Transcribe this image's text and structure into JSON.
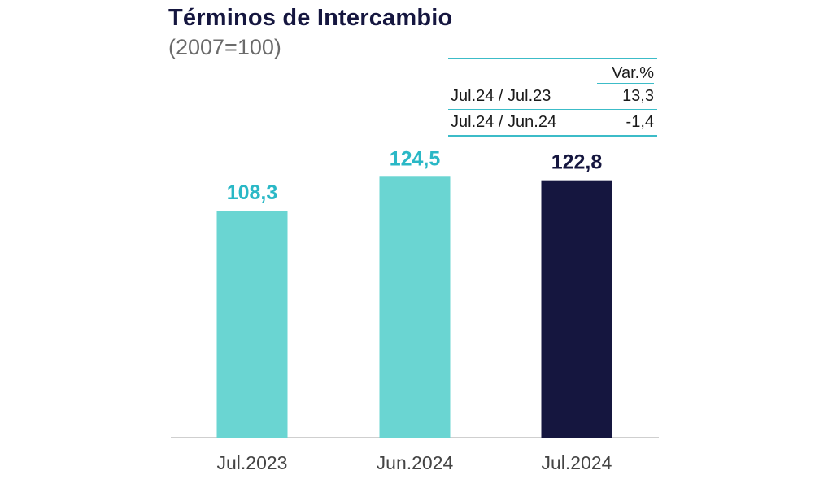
{
  "chart_data": {
    "type": "bar",
    "title": "Términos de Intercambio",
    "subtitle": "(2007=100)",
    "categories": [
      "Jul.2023",
      "Jun.2024",
      "Jul.2024"
    ],
    "values": [
      108.3,
      124.5,
      122.8
    ],
    "value_labels": [
      "108,3",
      "124,5",
      "122,8"
    ],
    "bar_colors": [
      "#6ad5d2",
      "#6ad5d2",
      "#15163f"
    ],
    "label_colors": [
      "#2ab8c6",
      "#2ab8c6",
      "#15163f"
    ],
    "ylim": [
      0,
      140
    ],
    "grid": false,
    "legend": "none"
  },
  "variation_table": {
    "header": "Var.%",
    "rows": [
      {
        "label": "Jul.24 / Jul.23",
        "value": "13,3"
      },
      {
        "label": "Jul.24 / Jun.24",
        "value": "-1,4"
      }
    ]
  },
  "colors": {
    "title": "#15163f",
    "accent_line": "#3cbcc8",
    "axis": "#bfbfbf"
  }
}
